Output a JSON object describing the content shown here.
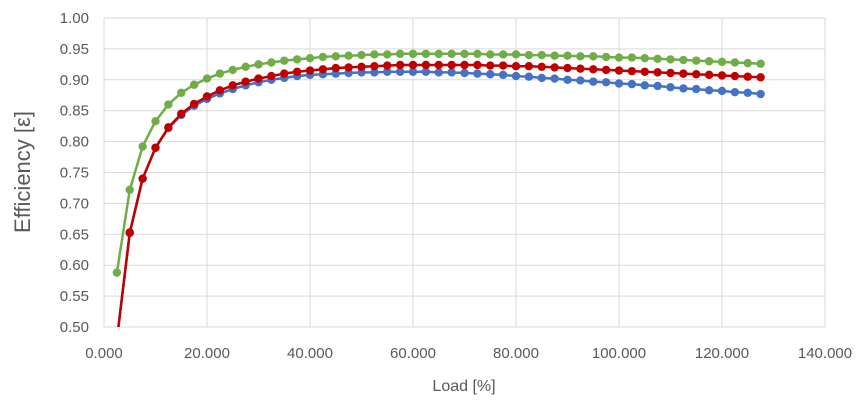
{
  "chart_data": {
    "type": "line",
    "title": "",
    "xlabel": "Load [%]",
    "ylabel": "Efficiency  [ε]",
    "xlim": [
      0,
      140
    ],
    "ylim": [
      0.5,
      1.0
    ],
    "x_ticks": [
      "0.000",
      "20.000",
      "40.000",
      "60.000",
      "80.000",
      "100.000",
      "120.000",
      "140.000"
    ],
    "y_ticks": [
      "0.50",
      "0.55",
      "0.60",
      "0.65",
      "0.70",
      "0.75",
      "0.80",
      "0.85",
      "0.90",
      "0.95",
      "1.00"
    ],
    "grid": true,
    "markers": true,
    "legend": "none",
    "x": [
      2.5,
      5,
      7.5,
      10,
      12.5,
      15,
      17.5,
      20,
      22.5,
      25,
      27.5,
      30,
      32.5,
      35,
      37.5,
      40,
      42.5,
      45,
      47.5,
      50,
      52.5,
      55,
      57.5,
      60,
      62.5,
      65,
      67.5,
      70,
      72.5,
      75,
      77.5,
      80,
      82.5,
      85,
      87.5,
      90,
      92.5,
      95,
      97.5,
      100,
      102.5,
      105,
      107.5,
      110,
      112.5,
      115,
      117.5,
      120,
      122.5,
      125,
      127.5
    ],
    "series": [
      {
        "color": "#4472c4",
        "values": [
          0.48,
          0.652,
          0.74,
          0.79,
          0.822,
          0.843,
          0.858,
          0.869,
          0.878,
          0.885,
          0.891,
          0.896,
          0.9,
          0.903,
          0.906,
          0.908,
          0.909,
          0.91,
          0.911,
          0.912,
          0.912,
          0.913,
          0.913,
          0.913,
          0.913,
          0.912,
          0.912,
          0.911,
          0.91,
          0.909,
          0.908,
          0.906,
          0.905,
          0.903,
          0.902,
          0.9,
          0.899,
          0.897,
          0.896,
          0.894,
          0.893,
          0.891,
          0.89,
          0.888,
          0.886,
          0.885,
          0.883,
          0.882,
          0.88,
          0.879,
          0.877
        ]
      },
      {
        "color": "#70ad47",
        "values": [
          0.588,
          0.722,
          0.792,
          0.833,
          0.86,
          0.879,
          0.892,
          0.902,
          0.91,
          0.916,
          0.921,
          0.925,
          0.928,
          0.931,
          0.933,
          0.935,
          0.937,
          0.938,
          0.939,
          0.94,
          0.941,
          0.941,
          0.942,
          0.942,
          0.942,
          0.942,
          0.942,
          0.942,
          0.942,
          0.941,
          0.941,
          0.941,
          0.94,
          0.94,
          0.939,
          0.939,
          0.938,
          0.938,
          0.937,
          0.936,
          0.936,
          0.935,
          0.934,
          0.933,
          0.932,
          0.931,
          0.93,
          0.929,
          0.928,
          0.927,
          0.926
        ]
      },
      {
        "color": "#c00000",
        "values": [
          0.48,
          0.653,
          0.74,
          0.79,
          0.823,
          0.845,
          0.861,
          0.873,
          0.883,
          0.891,
          0.897,
          0.902,
          0.906,
          0.91,
          0.913,
          0.915,
          0.917,
          0.919,
          0.92,
          0.921,
          0.922,
          0.923,
          0.924,
          0.924,
          0.924,
          0.924,
          0.924,
          0.924,
          0.924,
          0.923,
          0.923,
          0.922,
          0.922,
          0.921,
          0.92,
          0.919,
          0.918,
          0.917,
          0.916,
          0.915,
          0.914,
          0.913,
          0.912,
          0.911,
          0.91,
          0.909,
          0.908,
          0.907,
          0.906,
          0.905,
          0.904
        ]
      }
    ]
  }
}
